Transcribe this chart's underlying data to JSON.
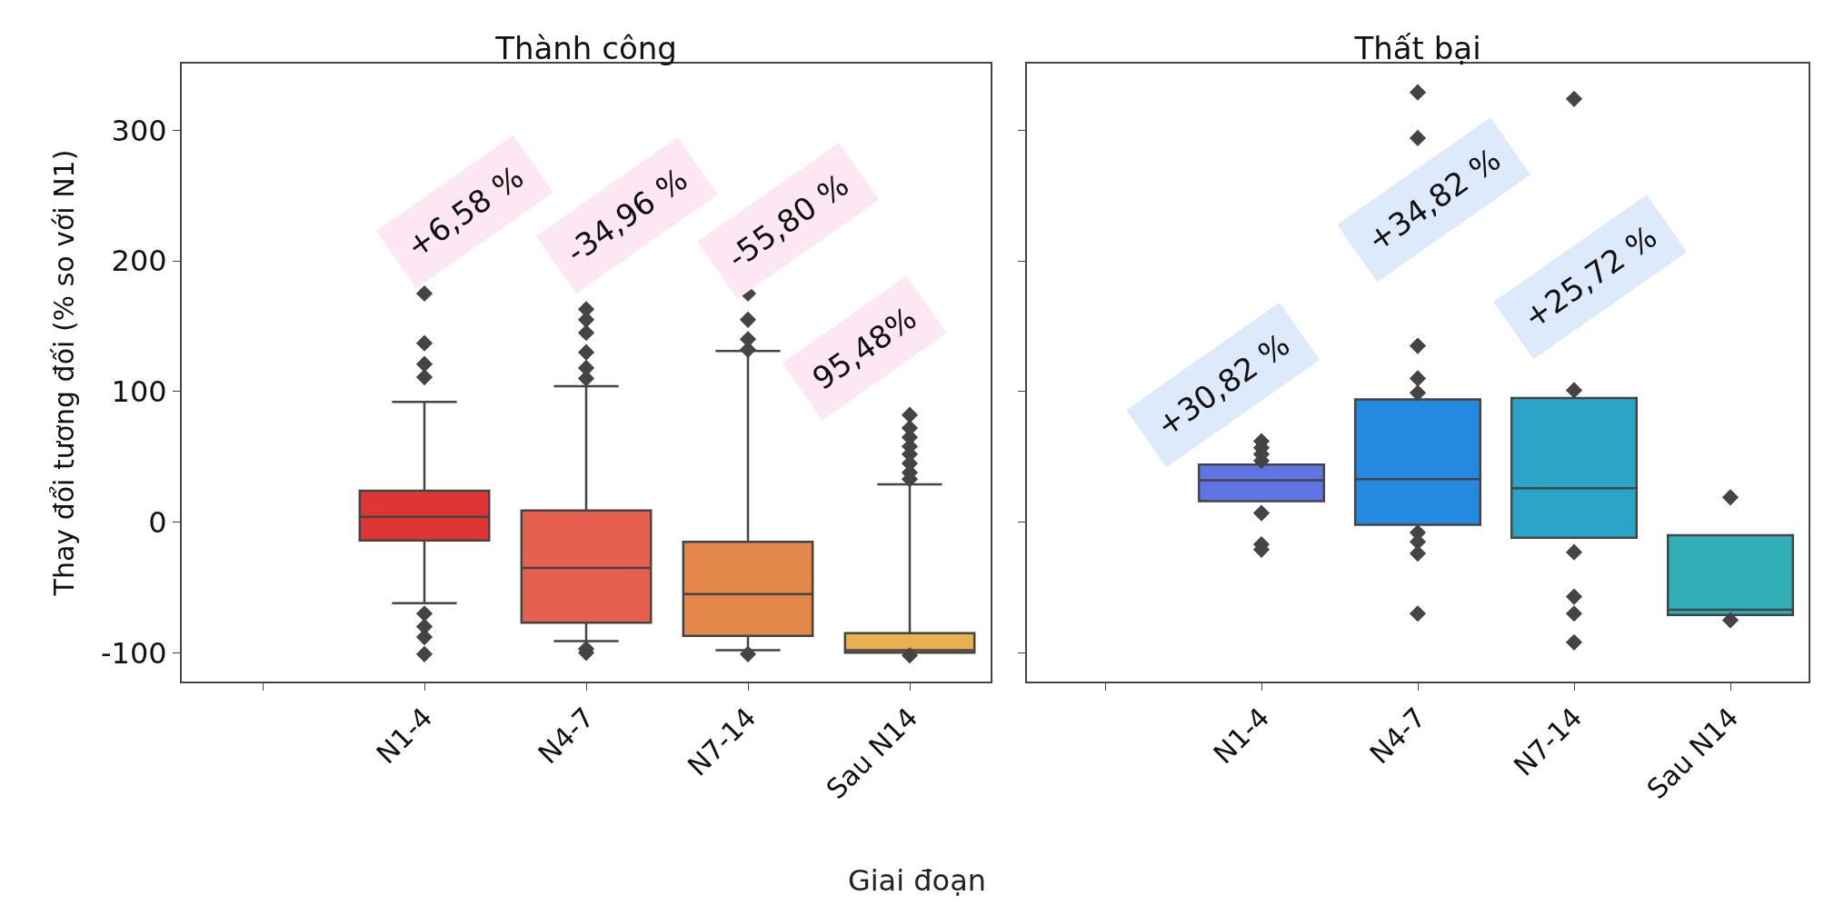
{
  "chart_data": [
    {
      "type": "box",
      "title": "Thành công",
      "xlabel": "Giai đoạn",
      "ylabel": "Thay đổi tương đối (% so với N1)",
      "categories": [
        null,
        "N1-4",
        "N4-7",
        "N7-14",
        "Sau N14"
      ],
      "colors": [
        null,
        "#e03535",
        "#e5604f",
        "#e3884a",
        "#e8b050"
      ],
      "boxes": [
        null,
        {
          "low": -62,
          "q1": -14,
          "median": 4,
          "q3": 24,
          "high": 92,
          "outliers": [
            175,
            137,
            121,
            111,
            -70,
            -80,
            -88,
            -101
          ]
        },
        {
          "low": -91,
          "q1": -77,
          "median": -35,
          "q3": 9,
          "high": 104,
          "outliers": [
            163,
            155,
            145,
            130,
            118,
            110,
            -97,
            -100
          ]
        },
        {
          "low": -98,
          "q1": -87,
          "median": -55,
          "q3": -15,
          "high": 131,
          "outliers": [
            175,
            155,
            140,
            132,
            -101
          ]
        },
        {
          "low": -100,
          "q1": -100,
          "median": -98,
          "q3": -85,
          "high": 29,
          "outliers": [
            82,
            72,
            65,
            58,
            52,
            45,
            38,
            33,
            -102
          ]
        }
      ],
      "ylim": [
        -122,
        351
      ],
      "yticks": [
        -100,
        0,
        100,
        200,
        300
      ],
      "marker": "diamond",
      "grid": false,
      "annotations": [
        "+6,58 %",
        "-34,96 %",
        "-55,80 %",
        "95,48%"
      ]
    },
    {
      "type": "box",
      "title": "Thất bại",
      "categories": [
        null,
        "N1-4",
        "N4-7",
        "N7-14",
        "Sau N14"
      ],
      "colors": [
        null,
        "#6074e6",
        "#2589df",
        "#2aa5c8",
        "#31aeb6"
      ],
      "boxes": [
        null,
        {
          "low": 16,
          "q1": 16,
          "median": 32,
          "q3": 44,
          "high": 44,
          "outliers": [
            62,
            57,
            52,
            47,
            7,
            -17,
            -21
          ]
        },
        {
          "low": -2,
          "q1": -2,
          "median": 33,
          "q3": 94,
          "high": 94,
          "outliers": [
            329,
            294,
            135,
            110,
            99,
            -8,
            -15,
            -24,
            -70
          ]
        },
        {
          "low": -12,
          "q1": -12,
          "median": 26,
          "q3": 95,
          "high": 95,
          "outliers": [
            324,
            101,
            -23,
            -57,
            -70,
            -92
          ]
        },
        {
          "low": -71,
          "q1": -71,
          "median": -67,
          "q3": -10,
          "high": -10,
          "outliers": [
            19,
            -75
          ]
        }
      ],
      "ylim": [
        -122,
        351
      ],
      "yticks": [
        -100,
        0,
        100,
        200,
        300
      ],
      "marker": "diamond",
      "grid": false,
      "tick_labels": "x",
      "annotations": [
        "+30,82 %",
        "+34,82 %",
        "+25,72 %"
      ]
    }
  ]
}
